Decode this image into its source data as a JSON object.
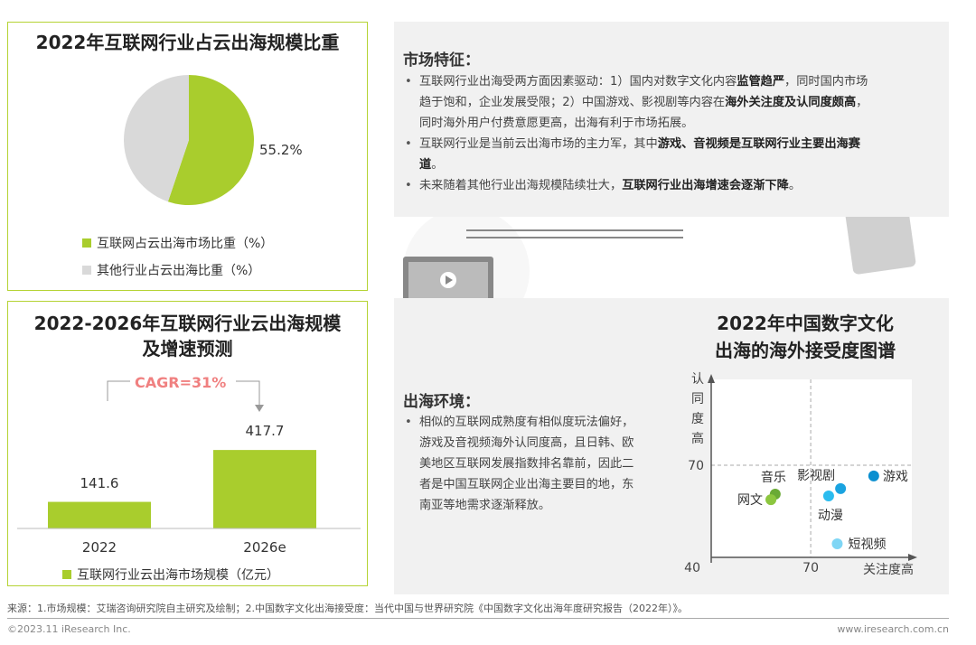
{
  "pie_panel": {
    "title": "2022年互联网行业占云出海规模比重",
    "label": "55.2%",
    "legend": [
      "互联网占云出海市场比重（%）",
      "其他行业占云出海比重（%）"
    ]
  },
  "bar_panel": {
    "title_line1": "2022-2026年互联网行业云出海规模",
    "title_line2": "及增速预测",
    "cagr": "CAGR=31%",
    "legend": "互联网行业云出海市场规模（亿元）",
    "value_labels": [
      "141.6",
      "417.7"
    ],
    "category_labels": [
      "2022",
      "2026e"
    ]
  },
  "market": {
    "heading": "市场特征：",
    "bullets": [
      [
        {
          "t": "互联网行业出海受两方面因素驱动：1）国内对数字文化内容"
        },
        {
          "t": "监管趋严",
          "b": true
        },
        {
          "t": "，同时国内市场趋于饱和，企业发展受限；2）中国游戏、影视剧等内容在"
        },
        {
          "t": "海外关注度及认同度颇高",
          "b": true
        },
        {
          "t": "，同时海外用户付费意愿更高，出海有利于市场拓展。"
        }
      ],
      [
        {
          "t": "互联网行业是当前云出海市场的主力军，其中"
        },
        {
          "t": "游戏、音视频是互联网行业主要出海赛道",
          "b": true
        },
        {
          "t": "。"
        }
      ],
      [
        {
          "t": "未来随着其他行业出海规模陆续壮大，"
        },
        {
          "t": "互联网行业出海增速会逐渐下降",
          "b": true
        },
        {
          "t": "。"
        }
      ]
    ]
  },
  "environment": {
    "heading": "出海环境：",
    "bullet": "相似的互联网成熟度有相似度玩法偏好，游戏及音视频海外认同度高，且日韩、欧美地区互联网发展指数排名靠前，因此二者是中国互联网企业出海主要目的地，东南亚等地需求逐渐释放。"
  },
  "scatter_panel": {
    "title_line1": "2022年中国数字文化",
    "title_line2": "出海的海外接受度图谱"
  },
  "footer": {
    "source": "来源：1.市场规模：艾瑞咨询研究院自主研究及绘制；2.中国数字文化出海接受度：当代中国与世界研究院《中国数字文化出海年度研究报告（2022年）》。",
    "copyright": "©2023.11 iResearch Inc.",
    "url": "www.iresearch.com.cn"
  },
  "colors": {
    "green": "#a9cd2d",
    "gray": "#d9d9d9",
    "border": "#b5d334",
    "cagr": "#f08080"
  },
  "chart_data": [
    {
      "type": "pie",
      "title": "2022年互联网行业占云出海规模比重",
      "slices": [
        {
          "name": "互联网占云出海市场比重（%）",
          "value": 55.2,
          "color": "#a9cd2d"
        },
        {
          "name": "其他行业占云出海比重（%）",
          "value": 44.8,
          "color": "#d9d9d9"
        }
      ]
    },
    {
      "type": "bar",
      "title": "2022-2026年互联网行业云出海规模及增速预测",
      "categories": [
        "2022",
        "2026e"
      ],
      "values": [
        141.6,
        417.7
      ],
      "unit": "亿元",
      "annotation": "CAGR=31%",
      "legend": "bottom"
    },
    {
      "type": "scatter",
      "title": "2022年中国数字文化出海的海外接受度图谱",
      "xlabel": "关注度高",
      "ylabel": "认同度高",
      "xlim": [
        40,
        100
      ],
      "ylim": [
        40,
        95
      ],
      "x_ticks": [
        "40",
        "70"
      ],
      "y_ticks": [
        "70"
      ],
      "reference_lines": {
        "x": 70,
        "y": 70
      },
      "points": [
        {
          "label": "游戏",
          "x": 89,
          "y": 66.5,
          "color": "#0a8fd0"
        },
        {
          "label": "影视剧",
          "x": 79,
          "y": 62.4,
          "color": "#1aa3e0"
        },
        {
          "label": "动漫",
          "x": 75.4,
          "y": 60,
          "color": "#2bbcef"
        },
        {
          "label": "短视频",
          "x": 78,
          "y": 44.4,
          "color": "#7fd6f5"
        },
        {
          "label": "音乐",
          "x": 59.3,
          "y": 60.6,
          "color": "#6aaa35"
        },
        {
          "label": "网文",
          "x": 58,
          "y": 58.8,
          "color": "#8cc63f"
        }
      ]
    }
  ]
}
